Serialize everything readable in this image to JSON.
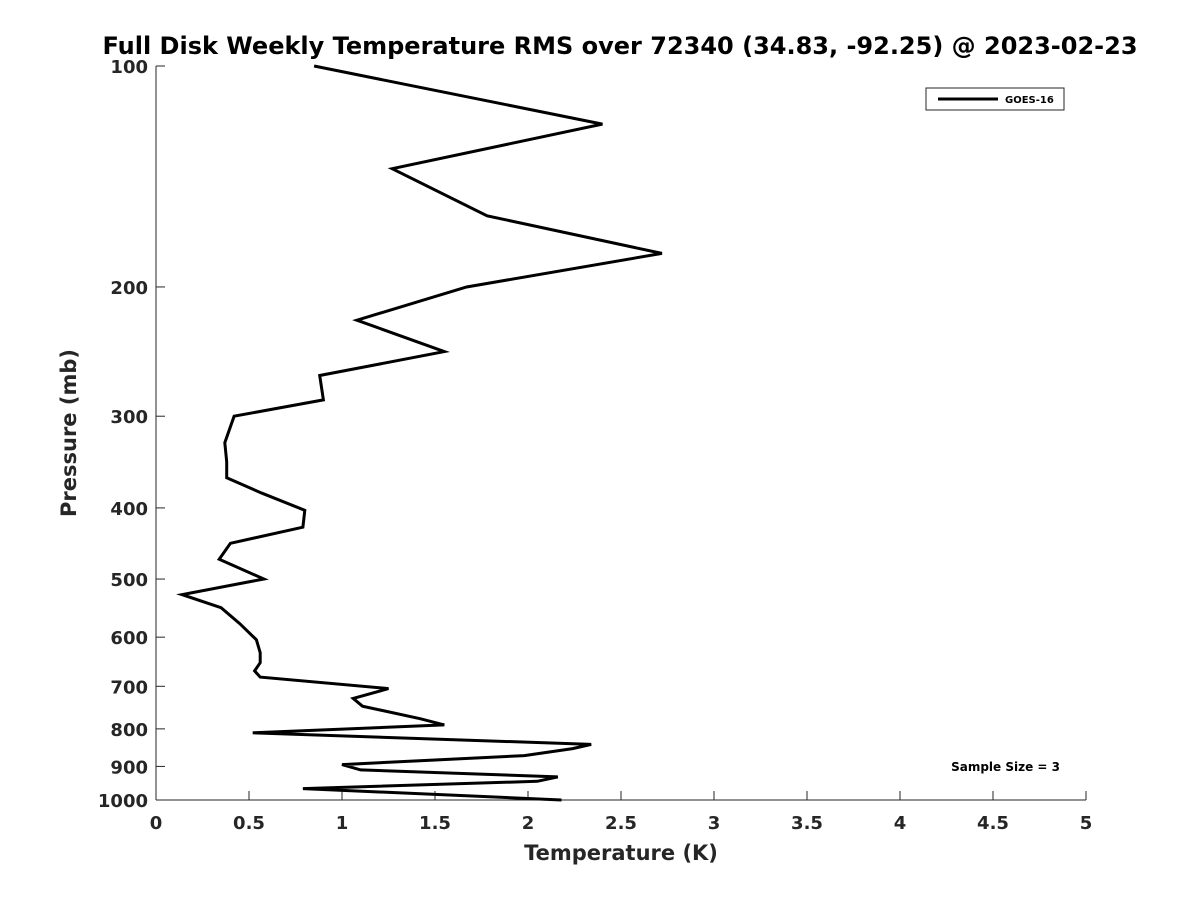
{
  "chart_data": {
    "type": "line",
    "title": "Full Disk Weekly Temperature RMS over 72340 (34.83, -92.25) @ 2023-02-23",
    "xlabel": "Temperature (K)",
    "ylabel": "Pressure (mb)",
    "xlim": [
      0,
      5
    ],
    "ylim": [
      100,
      1000
    ],
    "y_scale": "log",
    "y_reversed": true,
    "grid": false,
    "x_ticks": [
      "0",
      "0.5",
      "1",
      "1.5",
      "2",
      "2.5",
      "3",
      "3.5",
      "4",
      "4.5",
      "5"
    ],
    "y_ticks": [
      "100",
      "200",
      "300",
      "400",
      "500",
      "600",
      "700",
      "800",
      "900",
      "1000"
    ],
    "legend_position": "top-right",
    "annotation": "Sample Size = 3",
    "series": [
      {
        "name": "GOES-16",
        "color": "#000000",
        "x": [
          0.85,
          2.4,
          1.27,
          1.78,
          2.72,
          1.67,
          1.08,
          1.55,
          0.88,
          0.9,
          0.42,
          0.37,
          0.38,
          0.38,
          0.57,
          0.8,
          0.79,
          0.4,
          0.34,
          0.58,
          0.14,
          0.35,
          0.45,
          0.54,
          0.56,
          0.56,
          0.53,
          0.56,
          1.25,
          1.06,
          1.11,
          1.42,
          1.55,
          0.52,
          2.34,
          2.24,
          1.98,
          1.0,
          1.1,
          2.16,
          2.05,
          0.79,
          2.18
        ],
        "y": [
          100,
          120,
          138,
          160,
          180,
          200,
          222,
          245,
          264,
          285,
          300,
          326,
          346,
          364,
          382,
          403,
          425,
          447,
          470,
          500,
          525,
          547,
          575,
          605,
          630,
          650,
          667,
          680,
          705,
          727,
          745,
          775,
          790,
          810,
          840,
          851,
          870,
          895,
          910,
          930,
          943,
          965,
          1000
        ]
      }
    ]
  }
}
